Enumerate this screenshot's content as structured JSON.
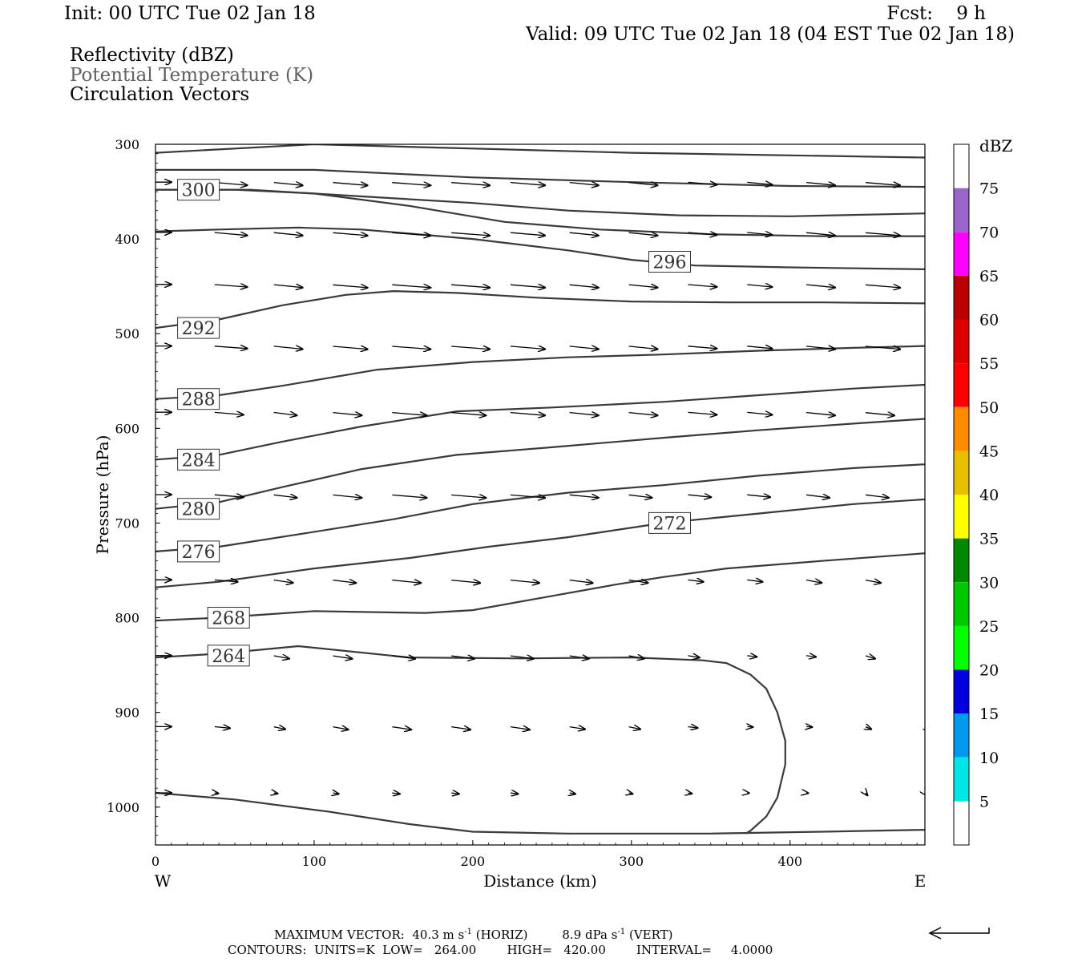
{
  "header": {
    "init": "Init: 00 UTC Tue 02 Jan 18",
    "fcst": "Fcst:    9 h",
    "valid": "Valid: 09 UTC Tue 02 Jan 18 (04 EST Tue 02 Jan 18)"
  },
  "legend_lines": {
    "reflectivity": "Reflectivity (dBZ)",
    "theta": "Potential Temperature (K)",
    "circulation": "Circulation Vectors"
  },
  "footer": {
    "max_vector_prefix": "MAXIMUM VECTOR:  40.3 m s",
    "max_vector_mid": " (HORIZ)         8.9 dPa s",
    "max_vector_suffix": " (VERT)",
    "superscript": "-1",
    "contours": "CONTOURS:  UNITS=K  LOW=   264.00        HIGH=   420.00        INTERVAL=     4.0000"
  },
  "chart_data": {
    "type": "cross-section",
    "xlabel": "Distance (km)",
    "ylabel": "Pressure (hPa)",
    "xlim": [
      0,
      485
    ],
    "ylim": [
      300,
      1040
    ],
    "y_inverted": true,
    "x_ticks": [
      0,
      100,
      200,
      300,
      400
    ],
    "y_ticks": [
      300,
      400,
      500,
      600,
      700,
      800,
      900,
      1000
    ],
    "left_label": "W",
    "right_label": "E",
    "theta_color": "#3a3a3a",
    "colorbar": {
      "unit": "dBZ",
      "labels": [
        "5",
        "10",
        "15",
        "20",
        "25",
        "30",
        "35",
        "40",
        "45",
        "50",
        "55",
        "60",
        "65",
        "70",
        "75"
      ],
      "colors": [
        "#ffffff",
        "#00e6e6",
        "#0099ee",
        "#0000dd",
        "#00ff00",
        "#00c800",
        "#008800",
        "#ffff00",
        "#e8c000",
        "#ff8c00",
        "#ff0000",
        "#dd0000",
        "#bb0000",
        "#ff00ff",
        "#9966cc",
        "#ffffff"
      ]
    },
    "contours": [
      {
        "points": [
          [
            0,
            309
          ],
          [
            100,
            300
          ],
          [
            300,
            309
          ],
          [
            485,
            314
          ]
        ]
      },
      {
        "points": [
          [
            0,
            327
          ],
          [
            100,
            327
          ],
          [
            200,
            335
          ],
          [
            300,
            340
          ],
          [
            400,
            344
          ],
          [
            485,
            345
          ]
        ]
      },
      {
        "points": [
          [
            0,
            348
          ],
          [
            60,
            348
          ],
          [
            130,
            355
          ],
          [
            200,
            362
          ],
          [
            260,
            370
          ],
          [
            330,
            375
          ],
          [
            400,
            376
          ],
          [
            485,
            373
          ]
        ]
      },
      {
        "label": "300",
        "lx": 18,
        "ly": 348,
        "points": [
          [
            0,
            348
          ],
          [
            50,
            348
          ],
          [
            100,
            352
          ],
          [
            160,
            365
          ],
          [
            220,
            382
          ],
          [
            280,
            390
          ],
          [
            350,
            395
          ],
          [
            420,
            397
          ],
          [
            485,
            397
          ]
        ]
      },
      {
        "label": "296",
        "lx": 315,
        "ly": 424,
        "points": [
          [
            0,
            392
          ],
          [
            40,
            390
          ],
          [
            90,
            388
          ],
          [
            130,
            390
          ],
          [
            200,
            400
          ],
          [
            260,
            412
          ],
          [
            300,
            422
          ],
          [
            340,
            428
          ],
          [
            400,
            430
          ],
          [
            485,
            432
          ]
        ]
      },
      {
        "label": "292",
        "lx": 18,
        "ly": 494,
        "points": [
          [
            0,
            494
          ],
          [
            40,
            485
          ],
          [
            80,
            470
          ],
          [
            120,
            459
          ],
          [
            150,
            455
          ],
          [
            190,
            457
          ],
          [
            240,
            462
          ],
          [
            300,
            466
          ],
          [
            360,
            467
          ],
          [
            420,
            467
          ],
          [
            485,
            468
          ]
        ]
      },
      {
        "label": "288",
        "lx": 18,
        "ly": 569,
        "points": [
          [
            0,
            569
          ],
          [
            40,
            565
          ],
          [
            80,
            555
          ],
          [
            140,
            538
          ],
          [
            200,
            530
          ],
          [
            260,
            525
          ],
          [
            320,
            522
          ],
          [
            380,
            518
          ],
          [
            440,
            515
          ],
          [
            485,
            513
          ]
        ]
      },
      {
        "label": "284",
        "lx": 18,
        "ly": 633,
        "points": [
          [
            0,
            633
          ],
          [
            40,
            628
          ],
          [
            80,
            614
          ],
          [
            130,
            598
          ],
          [
            190,
            582
          ],
          [
            250,
            578
          ],
          [
            320,
            572
          ],
          [
            380,
            565
          ],
          [
            440,
            558
          ],
          [
            485,
            554
          ]
        ]
      },
      {
        "label": "280",
        "lx": 18,
        "ly": 685,
        "points": [
          [
            0,
            685
          ],
          [
            40,
            678
          ],
          [
            80,
            662
          ],
          [
            130,
            643
          ],
          [
            190,
            628
          ],
          [
            250,
            620
          ],
          [
            320,
            610
          ],
          [
            380,
            602
          ],
          [
            440,
            595
          ],
          [
            485,
            590
          ]
        ]
      },
      {
        "label": "276",
        "lx": 18,
        "ly": 730,
        "points": [
          [
            0,
            730
          ],
          [
            40,
            725
          ],
          [
            90,
            712
          ],
          [
            150,
            696
          ],
          [
            200,
            680
          ],
          [
            260,
            668
          ],
          [
            320,
            660
          ],
          [
            380,
            650
          ],
          [
            440,
            642
          ],
          [
            485,
            638
          ]
        ]
      },
      {
        "label": "272",
        "lx": 315,
        "ly": 700,
        "points": [
          [
            0,
            768
          ],
          [
            40,
            762
          ],
          [
            100,
            748
          ],
          [
            160,
            737
          ],
          [
            210,
            725
          ],
          [
            260,
            715
          ],
          [
            320,
            700
          ],
          [
            380,
            690
          ],
          [
            440,
            680
          ],
          [
            485,
            675
          ]
        ]
      },
      {
        "label": "268",
        "lx": 37,
        "ly": 800,
        "points": [
          [
            0,
            803
          ],
          [
            40,
            800
          ],
          [
            100,
            793
          ],
          [
            170,
            795
          ],
          [
            200,
            792
          ],
          [
            240,
            780
          ],
          [
            290,
            765
          ],
          [
            320,
            757
          ],
          [
            360,
            748
          ],
          [
            420,
            740
          ],
          [
            485,
            732
          ]
        ]
      },
      {
        "label": "264",
        "lx": 37,
        "ly": 840,
        "points": [
          [
            0,
            842
          ],
          [
            40,
            838
          ],
          [
            90,
            830
          ],
          [
            160,
            842
          ],
          [
            230,
            843
          ],
          [
            300,
            842
          ],
          [
            345,
            845
          ],
          [
            360,
            848
          ],
          [
            375,
            860
          ],
          [
            385,
            875
          ],
          [
            392,
            900
          ],
          [
            397,
            930
          ],
          [
            397,
            955
          ],
          [
            392,
            990
          ],
          [
            385,
            1010
          ],
          [
            375,
            1025
          ],
          [
            372,
            1028
          ]
        ]
      },
      {
        "points": [
          [
            0,
            985
          ],
          [
            50,
            992
          ],
          [
            110,
            1005
          ],
          [
            160,
            1018
          ],
          [
            200,
            1026
          ],
          [
            260,
            1028
          ],
          [
            350,
            1028
          ],
          [
            420,
            1026
          ],
          [
            485,
            1024
          ]
        ]
      }
    ],
    "vectors": [
      {
        "p": 340,
        "row": [
          [
            0,
            20
          ],
          [
            12,
            17
          ],
          [
            18,
            15
          ],
          [
            25,
            18
          ],
          [
            25,
            20
          ],
          [
            22,
            20
          ],
          [
            20,
            18
          ],
          [
            20,
            15
          ],
          [
            17,
            15
          ],
          [
            10,
            15
          ],
          [
            10,
            13
          ],
          [
            17,
            15
          ],
          [
            25,
            18
          ],
          [
            25,
            18
          ]
        ]
      },
      {
        "p": 393,
        "row": [
          [
            0,
            20
          ],
          [
            12,
            17
          ],
          [
            18,
            15
          ],
          [
            25,
            18
          ],
          [
            25,
            20
          ],
          [
            22,
            20
          ],
          [
            20,
            18
          ],
          [
            20,
            15
          ],
          [
            17,
            15
          ],
          [
            10,
            15
          ],
          [
            10,
            13
          ],
          [
            17,
            15
          ],
          [
            25,
            18
          ],
          [
            25,
            18
          ]
        ]
      },
      {
        "p": 448,
        "row": [
          [
            0,
            20
          ],
          [
            10,
            17
          ],
          [
            18,
            15
          ],
          [
            25,
            18
          ],
          [
            22,
            20
          ],
          [
            22,
            20
          ],
          [
            20,
            18
          ],
          [
            20,
            15
          ],
          [
            17,
            15
          ],
          [
            10,
            15
          ],
          [
            10,
            13
          ],
          [
            17,
            15
          ],
          [
            25,
            18
          ],
          [
            25,
            18
          ]
        ]
      },
      {
        "p": 513,
        "row": [
          [
            0,
            20
          ],
          [
            10,
            17
          ],
          [
            18,
            15
          ],
          [
            25,
            18
          ],
          [
            22,
            20
          ],
          [
            22,
            20
          ],
          [
            20,
            18
          ],
          [
            20,
            15
          ],
          [
            17,
            15
          ],
          [
            10,
            15
          ],
          [
            10,
            13
          ],
          [
            17,
            15
          ],
          [
            25,
            18
          ],
          [
            25,
            18
          ]
        ]
      },
      {
        "p": 583,
        "row": [
          [
            0,
            18
          ],
          [
            10,
            15
          ],
          [
            15,
            12
          ],
          [
            20,
            15
          ],
          [
            20,
            18
          ],
          [
            20,
            18
          ],
          [
            20,
            18
          ],
          [
            20,
            15
          ],
          [
            17,
            15
          ],
          [
            10,
            15
          ],
          [
            10,
            13
          ],
          [
            17,
            15
          ],
          [
            22,
            15
          ],
          [
            22,
            15
          ]
        ]
      },
      {
        "p": 670,
        "row": [
          [
            0,
            18
          ],
          [
            10,
            15
          ],
          [
            15,
            12
          ],
          [
            20,
            15
          ],
          [
            20,
            18
          ],
          [
            20,
            18
          ],
          [
            20,
            18
          ],
          [
            18,
            15
          ],
          [
            15,
            12
          ],
          [
            10,
            12
          ],
          [
            10,
            12
          ],
          [
            15,
            12
          ],
          [
            18,
            12
          ],
          [
            18,
            12
          ]
        ]
      },
      {
        "p": 760,
        "row": [
          [
            0,
            15
          ],
          [
            8,
            12
          ],
          [
            12,
            10
          ],
          [
            15,
            12
          ],
          [
            15,
            15
          ],
          [
            15,
            15
          ],
          [
            15,
            15
          ],
          [
            15,
            12
          ],
          [
            12,
            10
          ],
          [
            8,
            8
          ],
          [
            8,
            8
          ],
          [
            12,
            8
          ],
          [
            15,
            8
          ],
          [
            15,
            8
          ]
        ]
      },
      {
        "p": 840,
        "row": [
          [
            0,
            12
          ],
          [
            8,
            10
          ],
          [
            12,
            8
          ],
          [
            15,
            10
          ],
          [
            15,
            12
          ],
          [
            15,
            12
          ],
          [
            15,
            12
          ],
          [
            15,
            10
          ],
          [
            12,
            8
          ],
          [
            8,
            6
          ],
          [
            5,
            5
          ],
          [
            5,
            5
          ],
          [
            12,
            5
          ],
          [
            12,
            5
          ]
        ]
      },
      {
        "p": 915,
        "row": [
          [
            0,
            10
          ],
          [
            6,
            8
          ],
          [
            10,
            6
          ],
          [
            12,
            8
          ],
          [
            12,
            10
          ],
          [
            12,
            10
          ],
          [
            12,
            10
          ],
          [
            10,
            8
          ],
          [
            10,
            6
          ],
          [
            5,
            5
          ],
          [
            2,
            3
          ],
          [
            2,
            3
          ],
          [
            10,
            3
          ],
          [
            10,
            3
          ]
        ]
      },
      {
        "p": 985,
        "row": [
          [
            0,
            3
          ],
          [
            2,
            2
          ],
          [
            3,
            2
          ],
          [
            4,
            3
          ],
          [
            4,
            4
          ],
          [
            4,
            4
          ],
          [
            4,
            4
          ],
          [
            4,
            3
          ],
          [
            4,
            2
          ],
          [
            3,
            2
          ],
          [
            1,
            1
          ],
          [
            1,
            1
          ],
          [
            10,
            1
          ],
          [
            10,
            1
          ]
        ]
      }
    ]
  }
}
